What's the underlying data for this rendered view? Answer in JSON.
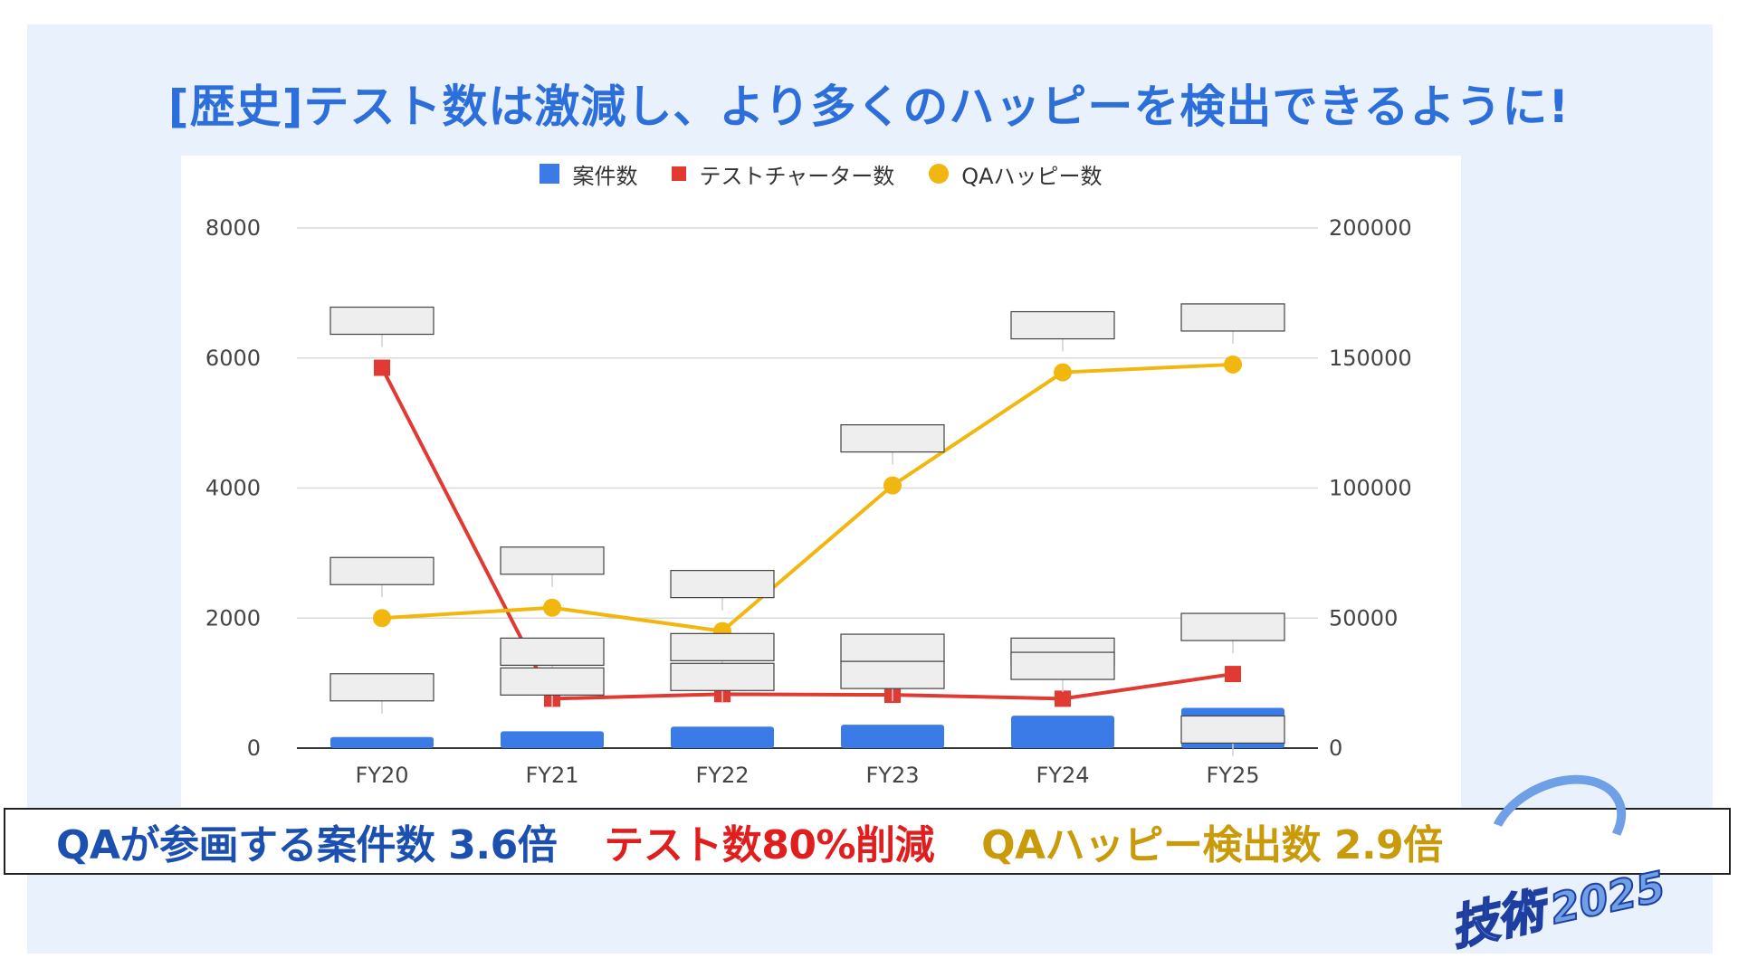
{
  "title": "[歴史]テスト数は激減し、より多くのハッピーを検出できるように!",
  "summary": [
    {
      "text": "QAが参画する案件数 3.6倍",
      "color": "#1b4fb0"
    },
    {
      "text": "テスト数80%削減",
      "color": "#e01e1e"
    },
    {
      "text": "QAハッピー検出数 2.9倍",
      "color": "#c99a0a"
    }
  ],
  "watermark": {
    "text": "技術",
    "year": "2025"
  },
  "chart_data": {
    "type": "bar",
    "categories": [
      "FY20",
      "FY21",
      "FY22",
      "FY23",
      "FY24",
      "FY25"
    ],
    "series": [
      {
        "name": "案件数",
        "kind": "bar",
        "axis": "left",
        "color": "#3b7be8",
        "values": [
          170,
          260,
          330,
          360,
          500,
          620
        ]
      },
      {
        "name": "テストチャーター数",
        "kind": "line",
        "axis": "left",
        "color": "#e03a32",
        "values": [
          5850,
          760,
          830,
          820,
          760,
          1140
        ]
      },
      {
        "name": "QAハッピー数",
        "kind": "line",
        "axis": "right",
        "color": "#f2b70f",
        "values": [
          50000,
          54000,
          45000,
          101000,
          144500,
          147500
        ]
      }
    ],
    "left_axis": {
      "ylim": [
        0,
        8000
      ],
      "ticks": [
        "0",
        "2000",
        "4000",
        "6000",
        "8000"
      ]
    },
    "right_axis": {
      "ylim": [
        0,
        200000
      ],
      "ticks": [
        "0",
        "50000",
        "100000",
        "150000",
        "200000"
      ]
    },
    "grid": true,
    "legend": "top"
  }
}
